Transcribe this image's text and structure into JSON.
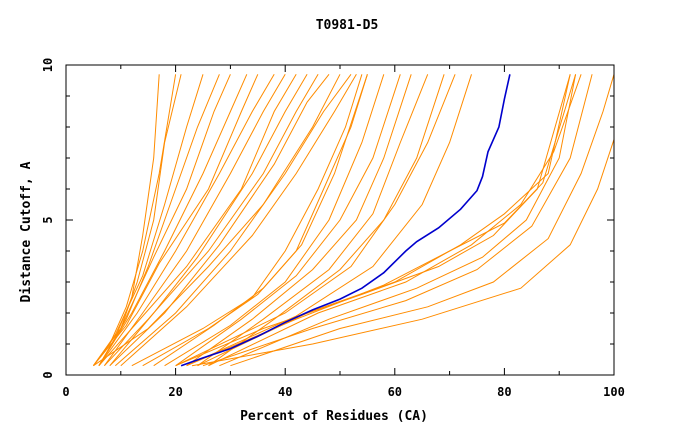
{
  "chart_data": {
    "type": "line",
    "title": "T0981-D5",
    "xlabel": "Percent of Residues (CA)",
    "ylabel": "Distance Cutoff, A",
    "xlim": [
      0,
      100
    ],
    "ylim": [
      0,
      10
    ],
    "x_ticks": [
      "0",
      "20",
      "40",
      "60",
      "80",
      "100"
    ],
    "y_ticks": [
      "0",
      "5",
      "10"
    ],
    "grid": false,
    "colors": {
      "orange": "#ff8c00",
      "blue": "#0000cd",
      "axis": "#000000"
    },
    "highlight_series": {
      "color": "#0000cd",
      "points": [
        [
          21,
          0.3
        ],
        [
          25,
          0.55
        ],
        [
          30,
          0.85
        ],
        [
          35,
          1.25
        ],
        [
          40,
          1.7
        ],
        [
          45,
          2.1
        ],
        [
          50,
          2.45
        ],
        [
          54,
          2.8
        ],
        [
          58,
          3.3
        ],
        [
          62,
          4.0
        ],
        [
          64,
          4.3
        ],
        [
          68,
          4.75
        ],
        [
          72,
          5.35
        ],
        [
          75,
          5.95
        ],
        [
          76,
          6.4
        ],
        [
          77,
          7.2
        ],
        [
          79,
          8.0
        ],
        [
          80,
          8.9
        ],
        [
          81,
          9.7
        ]
      ]
    },
    "background_series": {
      "color": "#ff8c00",
      "lines": [
        [
          [
            6,
            0.3
          ],
          [
            9,
            1.2
          ],
          [
            12,
            2.5
          ],
          [
            14,
            4.5
          ],
          [
            16,
            7
          ],
          [
            17,
            9.7
          ]
        ],
        [
          [
            5,
            0.3
          ],
          [
            8,
            1.0
          ],
          [
            11,
            2.2
          ],
          [
            14,
            4.0
          ],
          [
            17,
            6.5
          ],
          [
            20,
            9.7
          ]
        ],
        [
          [
            6,
            0.3
          ],
          [
            10,
            1.5
          ],
          [
            13,
            3.0
          ],
          [
            16,
            5.0
          ],
          [
            18,
            7.5
          ],
          [
            21,
            9.7
          ]
        ],
        [
          [
            5,
            0.3
          ],
          [
            9,
            1.3
          ],
          [
            14,
            3.2
          ],
          [
            18,
            5.5
          ],
          [
            22,
            8
          ],
          [
            25,
            9.7
          ]
        ],
        [
          [
            6,
            0.3
          ],
          [
            11,
            1.8
          ],
          [
            15,
            3.5
          ],
          [
            19,
            5.5
          ],
          [
            24,
            8
          ],
          [
            28,
            9.7
          ]
        ],
        [
          [
            5,
            0.3
          ],
          [
            10,
            1.5
          ],
          [
            16,
            3.8
          ],
          [
            22,
            6.0
          ],
          [
            27,
            8.5
          ],
          [
            30,
            9.7
          ]
        ],
        [
          [
            6,
            0.3
          ],
          [
            12,
            2.0
          ],
          [
            18,
            4.0
          ],
          [
            25,
            6.5
          ],
          [
            30,
            8.5
          ],
          [
            33,
            9.7
          ]
        ],
        [
          [
            5,
            0.3
          ],
          [
            11,
            1.6
          ],
          [
            17,
            3.6
          ],
          [
            26,
            6.0
          ],
          [
            32,
            8.5
          ],
          [
            35,
            9.7
          ]
        ],
        [
          [
            6,
            0.3
          ],
          [
            13,
            2.0
          ],
          [
            20,
            4.0
          ],
          [
            28,
            6.5
          ],
          [
            34,
            8.5
          ],
          [
            38,
            9.7
          ]
        ],
        [
          [
            7,
            0.3
          ],
          [
            14,
            2.0
          ],
          [
            22,
            4.0
          ],
          [
            30,
            6.5
          ],
          [
            36,
            8.5
          ],
          [
            40,
            9.7
          ]
        ],
        [
          [
            6,
            0.3
          ],
          [
            12,
            1.5
          ],
          [
            22,
            3.5
          ],
          [
            32,
            6.0
          ],
          [
            38,
            8.5
          ],
          [
            42,
            9.7
          ]
        ],
        [
          [
            8,
            0.3
          ],
          [
            16,
            2.0
          ],
          [
            24,
            3.8
          ],
          [
            34,
            6.5
          ],
          [
            40,
            8.5
          ],
          [
            44,
            9.7
          ]
        ],
        [
          [
            7,
            0.3
          ],
          [
            15,
            1.8
          ],
          [
            26,
            4.0
          ],
          [
            36,
            6.5
          ],
          [
            42,
            8.5
          ],
          [
            46,
            9.7
          ]
        ],
        [
          [
            8,
            0.3
          ],
          [
            18,
            2.0
          ],
          [
            28,
            4.2
          ],
          [
            38,
            6.8
          ],
          [
            44,
            8.8
          ],
          [
            48,
            9.7
          ]
        ],
        [
          [
            5,
            0.3
          ],
          [
            15,
            1.5
          ],
          [
            26,
            3.5
          ],
          [
            36,
            5.5
          ],
          [
            45,
            8.0
          ],
          [
            50,
            9.7
          ]
        ],
        [
          [
            9,
            0.3
          ],
          [
            20,
            2.0
          ],
          [
            30,
            4.0
          ],
          [
            40,
            6.5
          ],
          [
            47,
            8.5
          ],
          [
            52,
            9.7
          ]
        ],
        [
          [
            10,
            0.3
          ],
          [
            22,
            2.2
          ],
          [
            34,
            4.5
          ],
          [
            42,
            6.5
          ],
          [
            49,
            8.5
          ],
          [
            53,
            9.7
          ]
        ],
        [
          [
            12,
            0.3
          ],
          [
            25,
            1.5
          ],
          [
            34,
            2.5
          ],
          [
            40,
            4.0
          ],
          [
            46,
            6.0
          ],
          [
            51,
            8.0
          ],
          [
            54,
            9.7
          ]
        ],
        [
          [
            14,
            0.3
          ],
          [
            26,
            1.5
          ],
          [
            35,
            2.6
          ],
          [
            42,
            4.0
          ],
          [
            47,
            6.0
          ],
          [
            52,
            8.0
          ],
          [
            55,
            9.7
          ]
        ],
        [
          [
            16,
            0.3
          ],
          [
            27,
            1.6
          ],
          [
            36,
            2.8
          ],
          [
            43,
            4.2
          ],
          [
            49,
            6.5
          ],
          [
            55,
            9.7
          ]
        ],
        [
          [
            18,
            0.3
          ],
          [
            30,
            1.6
          ],
          [
            40,
            3.0
          ],
          [
            48,
            5.0
          ],
          [
            54,
            7.5
          ],
          [
            58,
            9.7
          ]
        ],
        [
          [
            20,
            0.3
          ],
          [
            32,
            1.8
          ],
          [
            42,
            3.2
          ],
          [
            50,
            5.0
          ],
          [
            56,
            7.0
          ],
          [
            61,
            9.7
          ]
        ],
        [
          [
            22,
            0.3
          ],
          [
            34,
            1.8
          ],
          [
            45,
            3.4
          ],
          [
            53,
            5.0
          ],
          [
            58,
            7.0
          ],
          [
            63,
            9.7
          ]
        ],
        [
          [
            24,
            0.3
          ],
          [
            36,
            1.8
          ],
          [
            48,
            3.4
          ],
          [
            56,
            5.2
          ],
          [
            61,
            7.5
          ],
          [
            66,
            9.7
          ]
        ],
        [
          [
            26,
            0.3
          ],
          [
            38,
            1.8
          ],
          [
            50,
            3.4
          ],
          [
            58,
            5.0
          ],
          [
            64,
            7.0
          ],
          [
            69,
            9.7
          ]
        ],
        [
          [
            20,
            0.3
          ],
          [
            40,
            2.0
          ],
          [
            52,
            3.5
          ],
          [
            60,
            5.5
          ],
          [
            66,
            7.5
          ],
          [
            71,
            9.7
          ]
        ],
        [
          [
            22,
            0.3
          ],
          [
            42,
            1.9
          ],
          [
            56,
            3.5
          ],
          [
            65,
            5.5
          ],
          [
            70,
            7.5
          ],
          [
            74,
            9.7
          ]
        ],
        [
          [
            24,
            0.3
          ],
          [
            44,
            2.0
          ],
          [
            60,
            3.0
          ],
          [
            72,
            4.2
          ],
          [
            80,
            5.2
          ],
          [
            88,
            6.5
          ],
          [
            92,
            9.7
          ]
        ],
        [
          [
            22,
            0.3
          ],
          [
            42,
            1.8
          ],
          [
            58,
            2.9
          ],
          [
            70,
            4.0
          ],
          [
            80,
            4.9
          ],
          [
            87,
            6.2
          ],
          [
            93,
            9.7
          ]
        ],
        [
          [
            26,
            0.3
          ],
          [
            46,
            2.0
          ],
          [
            62,
            3.0
          ],
          [
            74,
            4.2
          ],
          [
            83,
            5.5
          ],
          [
            89,
            7.2
          ],
          [
            94,
            9.7
          ]
        ],
        [
          [
            20,
            0.3
          ],
          [
            36,
            1.5
          ],
          [
            54,
            2.6
          ],
          [
            68,
            3.5
          ],
          [
            78,
            4.5
          ],
          [
            86,
            6.0
          ],
          [
            92,
            9.7
          ]
        ],
        [
          [
            28,
            0.3
          ],
          [
            48,
            1.8
          ],
          [
            64,
            2.8
          ],
          [
            76,
            3.8
          ],
          [
            84,
            5.0
          ],
          [
            90,
            7.0
          ],
          [
            93,
            9.7
          ]
        ],
        [
          [
            25,
            0.3
          ],
          [
            45,
            1.5
          ],
          [
            62,
            2.4
          ],
          [
            75,
            3.4
          ],
          [
            85,
            4.8
          ],
          [
            92,
            7.0
          ],
          [
            96,
            9.7
          ]
        ],
        [
          [
            30,
            0.3
          ],
          [
            50,
            1.5
          ],
          [
            66,
            2.2
          ],
          [
            78,
            3.0
          ],
          [
            88,
            4.4
          ],
          [
            94,
            6.5
          ],
          [
            98,
            8.5
          ],
          [
            100,
            9.7
          ]
        ],
        [
          [
            23,
            0.3
          ],
          [
            45,
            1.0
          ],
          [
            65,
            1.8
          ],
          [
            83,
            2.8
          ],
          [
            92,
            4.2
          ],
          [
            97,
            6.0
          ],
          [
            100,
            7.6
          ],
          [
            100,
            9.7
          ]
        ]
      ]
    }
  }
}
